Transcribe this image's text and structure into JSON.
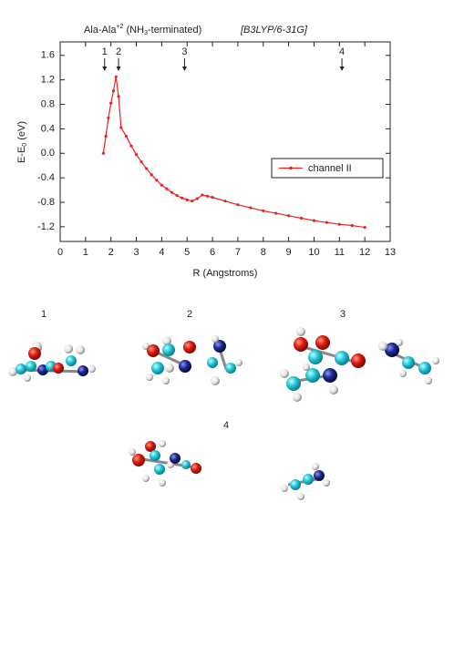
{
  "chart_data": {
    "type": "line",
    "title": {
      "main": "Ala-Ala",
      "sup": "+2",
      "mid": " (NH",
      "sub": "3",
      "end": "-terminated)",
      "method": "[B3LYP/6-31G]"
    },
    "x_label": "R (Angstroms)",
    "y_label": {
      "main": "E-E",
      "sub": "0",
      "end": " (eV)"
    },
    "xlim": [
      0,
      13
    ],
    "xticks": [
      0,
      1,
      2,
      3,
      4,
      5,
      6,
      7,
      8,
      9,
      10,
      11,
      12,
      13
    ],
    "ylim": [
      -1.44,
      1.82
    ],
    "yticks": [
      -1.2,
      -0.8,
      -0.4,
      {
        "value": 0,
        "label": "0.0"
      },
      0.4,
      0.8,
      1.2,
      1.6
    ],
    "legend": "right",
    "series": [
      {
        "name": "channel II",
        "color": "#e8231e",
        "x": [
          1.7,
          1.8,
          1.9,
          2.0,
          2.1,
          2.2,
          2.3,
          2.4,
          2.6,
          2.8,
          3.0,
          3.2,
          3.4,
          3.6,
          3.8,
          4.0,
          4.2,
          4.4,
          4.6,
          4.8,
          5.0,
          5.2,
          5.4,
          5.6,
          5.8,
          6.0,
          6.5,
          7.0,
          7.5,
          8.0,
          8.5,
          9.0,
          9.5,
          10.0,
          10.5,
          11.0,
          11.5,
          12.0
        ],
        "values": [
          0.0,
          0.28,
          0.58,
          0.82,
          1.02,
          1.25,
          0.93,
          0.42,
          0.28,
          0.12,
          -0.02,
          -0.14,
          -0.25,
          -0.35,
          -0.44,
          -0.52,
          -0.58,
          -0.64,
          -0.69,
          -0.73,
          -0.76,
          -0.78,
          -0.74,
          -0.68,
          -0.7,
          -0.72,
          -0.78,
          -0.84,
          -0.89,
          -0.94,
          -0.98,
          -1.02,
          -1.06,
          -1.1,
          -1.13,
          -1.16,
          -1.18,
          -1.21
        ]
      }
    ],
    "annotations": [
      {
        "label": "1",
        "x": 1.75
      },
      {
        "label": "2",
        "x": 2.3
      },
      {
        "label": "3",
        "x": 4.9
      },
      {
        "label": "4",
        "x": 11.1
      }
    ]
  },
  "structures": [
    {
      "label": "1"
    },
    {
      "label": "2"
    },
    {
      "label": "3"
    },
    {
      "label": "4"
    }
  ]
}
